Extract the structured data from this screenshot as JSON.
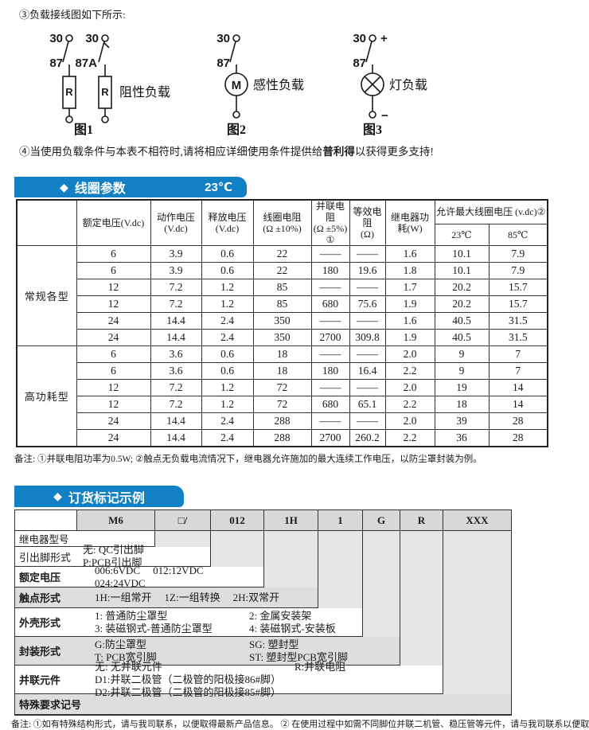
{
  "notes": {
    "note3": "③负载接线图如下所示:",
    "note4_prefix": "④当使用负载条件与本表不相符时,请将相应详细使用条件提供给",
    "note4_bold": "普利得",
    "note4_suffix": "以获得更多支持!",
    "coil_note": "备注: ①并联电阻功率为0.5W;  ②触点无负载电流情况下，继电器允许施加的最大连续工作电压，以防尘罩封装为例。",
    "order_note": "备注: ①如有特殊结构形式，请与我司联系，以便取得最新产品信息。 ② 在使用过程中如需不同脚位并联二机管、稳压管等元件，请与我司联系以便取得技术支持。"
  },
  "diagrams": {
    "fig1": {
      "caption": "图1",
      "load_label": "阻性负载",
      "top_label": "30",
      "mid_label_a": "87",
      "mid_label_b": "87A",
      "resistor": "R"
    },
    "fig2": {
      "caption": "图2",
      "load_label": "感性负载",
      "top_label": "30",
      "mid_label": "87",
      "motor": "M"
    },
    "fig3": {
      "caption": "图3",
      "load_label": "灯负载",
      "top_label": "30",
      "mid_label": "87",
      "plus": "+",
      "minus": "−"
    }
  },
  "coil_section": {
    "diamond": "◆",
    "title": "线圈参数",
    "temp": "23℃",
    "headers": {
      "group": "",
      "rated": "额定电压(V.dc)",
      "operate": "动作电压\n(V.dc)",
      "release": "释放电压\n(V.dc)",
      "coil_res": "线圈电阻\n(Ω ±10%)",
      "parallel_res": "并联电阻\n(Ω ±5%)\n①",
      "equiv_res": "等效电阻\n(Ω)",
      "power": "继电器功\n耗(W)",
      "max_volt": "允许最大线圈电压 (v.dc)②",
      "t23": "23℃",
      "t85": "85℃"
    },
    "groups": [
      {
        "name": "常规各型",
        "rows": [
          [
            "6",
            "3.9",
            "0.6",
            "22",
            "——",
            "——",
            "1.6",
            "10.1",
            "7.9"
          ],
          [
            "6",
            "3.9",
            "0.6",
            "22",
            "180",
            "19.6",
            "1.8",
            "10.1",
            "7.9"
          ],
          [
            "12",
            "7.2",
            "1.2",
            "85",
            "——",
            "——",
            "1.7",
            "20.2",
            "15.7"
          ],
          [
            "12",
            "7.2",
            "1.2",
            "85",
            "680",
            "75.6",
            "1.9",
            "20.2",
            "15.7"
          ],
          [
            "24",
            "14.4",
            "2.4",
            "350",
            "——",
            "——",
            "1.6",
            "40.5",
            "31.5"
          ],
          [
            "24",
            "14.4",
            "2.4",
            "350",
            "2700",
            "309.8",
            "1.9",
            "40.5",
            "31.5"
          ]
        ]
      },
      {
        "name": "高功耗型",
        "rows": [
          [
            "6",
            "3.6",
            "0.6",
            "18",
            "——",
            "——",
            "2.0",
            "9",
            "7"
          ],
          [
            "6",
            "3.6",
            "0.6",
            "18",
            "180",
            "16.4",
            "2.2",
            "9",
            "7"
          ],
          [
            "12",
            "7.2",
            "1.2",
            "72",
            "——",
            "——",
            "2.0",
            "19",
            "14"
          ],
          [
            "12",
            "7.2",
            "1.2",
            "72",
            "680",
            "65.1",
            "2.2",
            "18",
            "14"
          ],
          [
            "24",
            "14.4",
            "2.4",
            "288",
            "——",
            "——",
            "2.0",
            "39",
            "28"
          ],
          [
            "24",
            "14.4",
            "2.4",
            "288",
            "2700",
            "260.2",
            "2.2",
            "36",
            "28"
          ]
        ]
      }
    ]
  },
  "order_section": {
    "diamond": "◆",
    "title": "订货标记示例",
    "codes": [
      "",
      "M6",
      "□/",
      "012",
      "1H",
      "1",
      "G",
      "R",
      "XXX"
    ],
    "rows": [
      {
        "label": "继电器型号"
      },
      {
        "label": "引出脚形式",
        "items1": [
          "无: QC引出脚",
          "P:PCB引出脚"
        ]
      },
      {
        "label": "额定电压",
        "items1": [
          "006:6VDC",
          "012:12VDC",
          "024:24VDC"
        ]
      },
      {
        "label": "触点形式",
        "items1": [
          "1H:一组常开",
          "1Z:一组转换",
          "2H:双常开"
        ]
      },
      {
        "label": "外壳形式",
        "items1": [
          "1: 普通防尘罩型",
          "2: 金属安装架"
        ],
        "items2": [
          "3: 装磁钢式-普通防尘罩型",
          "4: 装磁钢式-安装板"
        ]
      },
      {
        "label": "封装形式",
        "items1": [
          "G:防尘罩型",
          "SG: 塑封型"
        ],
        "items2": [
          "T: PCB宽引脚",
          "ST: 塑封型PCB宽引脚"
        ]
      },
      {
        "label": "并联元件",
        "items1": [
          "无: 无并联元件",
          "R:并联电阻"
        ],
        "items2": [
          "D1:并联二极管（二极管的阳极接86#脚）",
          "D2:并联二极管（二极管的阳极接85#脚）"
        ]
      },
      {
        "label": "特殊要求记号"
      }
    ]
  },
  "colors": {
    "accent_blue": "#1280c4",
    "row_gray": "#dedede"
  }
}
